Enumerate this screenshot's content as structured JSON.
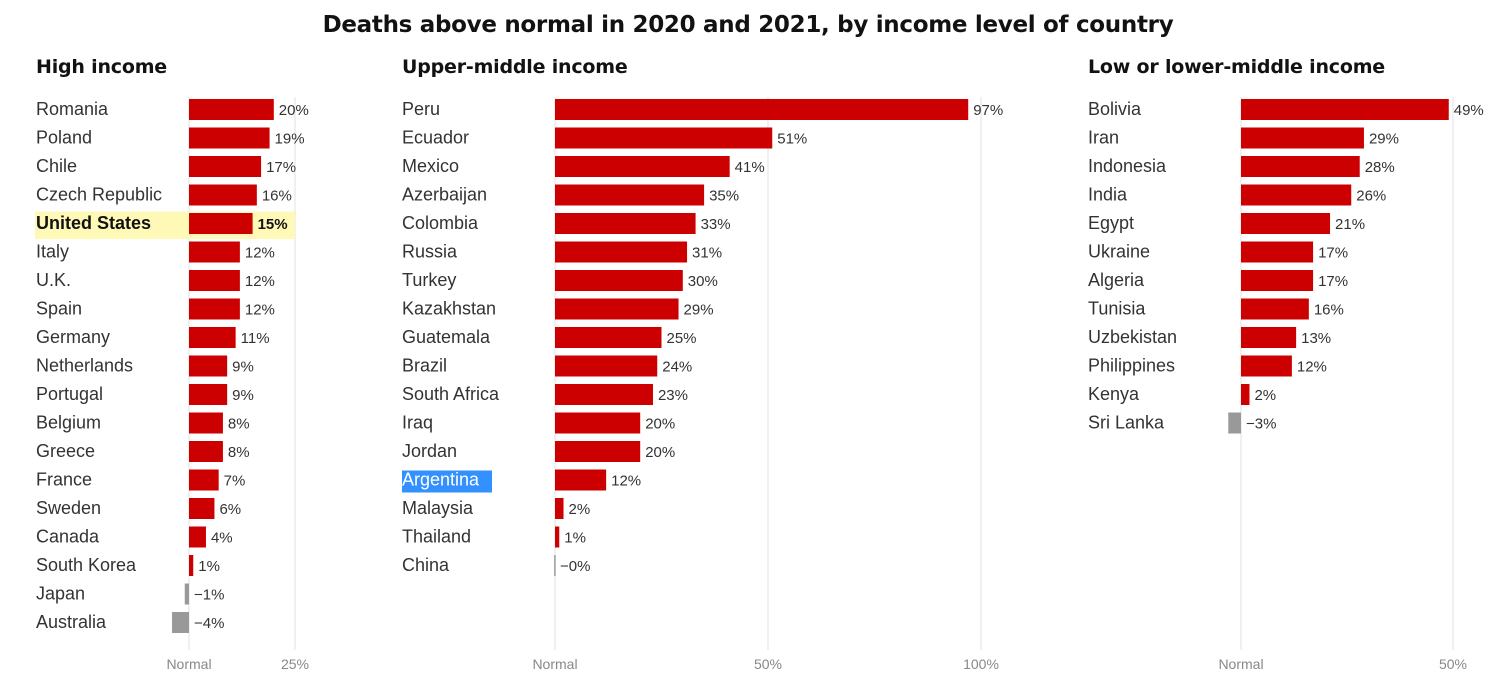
{
  "title": "Deaths above normal in 2020 and 2021, by income level of country",
  "colors": {
    "positive": "#cc0000",
    "negative": "#999999",
    "highlight": "#fff9b7",
    "selection": "#3390ff",
    "grid": "#e2e2e2"
  },
  "chart_data": [
    {
      "type": "bar",
      "orientation": "horizontal",
      "title": "High income",
      "categories": [
        "Romania",
        "Poland",
        "Chile",
        "Czech Republic",
        "United States",
        "Italy",
        "U.K.",
        "Spain",
        "Germany",
        "Netherlands",
        "Portugal",
        "Belgium",
        "Greece",
        "France",
        "Sweden",
        "Canada",
        "South Korea",
        "Japan",
        "Australia"
      ],
      "values": [
        20,
        19,
        17,
        16,
        15,
        12,
        12,
        12,
        11,
        9,
        9,
        8,
        8,
        7,
        6,
        4,
        1,
        -1,
        -4
      ],
      "value_labels": [
        "20%",
        "19%",
        "17%",
        "16%",
        "15%",
        "12%",
        "12%",
        "12%",
        "11%",
        "9%",
        "9%",
        "8%",
        "8%",
        "7%",
        "6%",
        "4%",
        "1%",
        "−1%",
        "−4%"
      ],
      "highlighted": "United States",
      "xlim": [
        -4,
        25
      ],
      "ticks": [
        0,
        25
      ],
      "tick_labels": [
        "Normal",
        "25%"
      ],
      "grid": true
    },
    {
      "type": "bar",
      "orientation": "horizontal",
      "title": "Upper-middle income",
      "categories": [
        "Peru",
        "Ecuador",
        "Mexico",
        "Azerbaijan",
        "Colombia",
        "Russia",
        "Turkey",
        "Kazakhstan",
        "Guatemala",
        "Brazil",
        "South Africa",
        "Iraq",
        "Jordan",
        "Argentina",
        "Malaysia",
        "Thailand",
        "China"
      ],
      "values": [
        97,
        51,
        41,
        35,
        33,
        31,
        30,
        29,
        25,
        24,
        23,
        20,
        20,
        12,
        2,
        1,
        -0.2
      ],
      "value_labels": [
        "97%",
        "51%",
        "41%",
        "35%",
        "33%",
        "31%",
        "30%",
        "29%",
        "25%",
        "24%",
        "23%",
        "20%",
        "20%",
        "12%",
        "2%",
        "1%",
        "−0%"
      ],
      "selected": "Argentina",
      "xlim": [
        0,
        100
      ],
      "ticks": [
        0,
        50,
        100
      ],
      "tick_labels": [
        "Normal",
        "50%",
        "100%"
      ],
      "grid": true
    },
    {
      "type": "bar",
      "orientation": "horizontal",
      "title": "Low or lower-middle income",
      "categories": [
        "Bolivia",
        "Iran",
        "Indonesia",
        "India",
        "Egypt",
        "Ukraine",
        "Algeria",
        "Tunisia",
        "Uzbekistan",
        "Philippines",
        "Kenya",
        "Sri Lanka"
      ],
      "values": [
        49,
        29,
        28,
        26,
        21,
        17,
        17,
        16,
        13,
        12,
        2,
        -3
      ],
      "value_labels": [
        "49%",
        "29%",
        "28%",
        "26%",
        "21%",
        "17%",
        "17%",
        "16%",
        "13%",
        "12%",
        "2%",
        "−3%"
      ],
      "xlim": [
        -3,
        50
      ],
      "ticks": [
        0,
        50
      ],
      "tick_labels": [
        "Normal",
        "50%"
      ],
      "grid": true
    }
  ]
}
